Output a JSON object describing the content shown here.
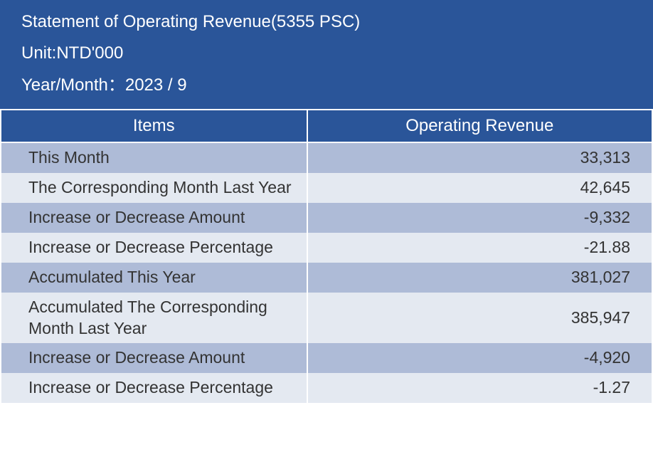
{
  "header": {
    "title": "Statement of Operating Revenue(5355 PSC)",
    "unit": "Unit:NTD'000",
    "period": "Year/Month：2023 / 9"
  },
  "table": {
    "columns": [
      "Items",
      "Operating Revenue"
    ],
    "rows": [
      {
        "label": "This Month",
        "value": "33,313"
      },
      {
        "label": "The Corresponding Month Last Year",
        "value": "42,645"
      },
      {
        "label": "Increase or Decrease Amount",
        "value": "-9,332"
      },
      {
        "label": "Increase or Decrease Percentage",
        "value": "-21.88"
      },
      {
        "label": "Accumulated This Year",
        "value": "381,027"
      },
      {
        "label": "Accumulated The Corresponding Month Last Year",
        "value": "385,947"
      },
      {
        "label": "Increase or Decrease Amount",
        "value": "-4,920"
      },
      {
        "label": "Increase or Decrease Percentage",
        "value": "-1.27"
      }
    ],
    "colors": {
      "header_bg": "#2a5599",
      "header_text": "#ffffff",
      "row_odd_bg": "#aebbd7",
      "row_even_bg": "#e4e9f1",
      "cell_text": "#333333",
      "border": "#ffffff"
    },
    "font_sizes": {
      "header": 24,
      "table_header": 24,
      "cell": 23
    }
  }
}
